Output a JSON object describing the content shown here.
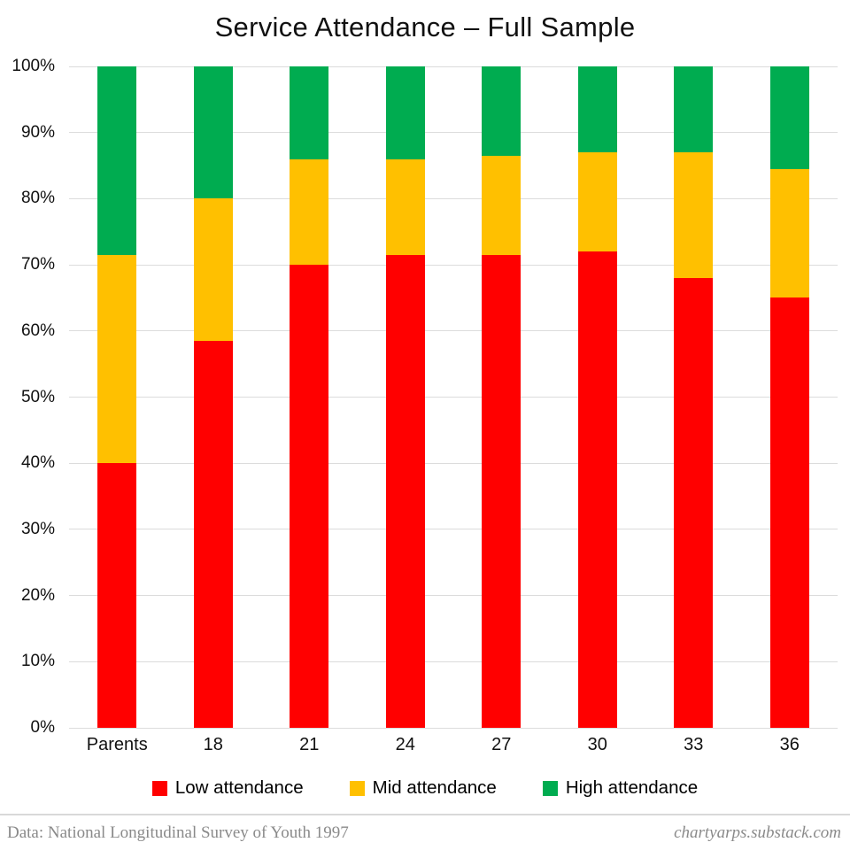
{
  "title": "Service Attendance – Full Sample",
  "chart_data": {
    "type": "bar",
    "stacked": true,
    "orientation": "vertical",
    "title": "Service Attendance – Full Sample",
    "categories": [
      "Parents",
      "18",
      "21",
      "24",
      "27",
      "30",
      "33",
      "36"
    ],
    "series": [
      {
        "name": "Low attendance",
        "color": "#ff0000",
        "values": [
          40.0,
          58.5,
          70.0,
          71.5,
          71.5,
          72.0,
          68.0,
          65.0
        ]
      },
      {
        "name": "Mid attendance",
        "color": "#ffc000",
        "values": [
          31.5,
          21.5,
          16.0,
          14.5,
          15.0,
          15.0,
          19.0,
          19.5
        ]
      },
      {
        "name": "High attendance",
        "color": "#00ac50",
        "values": [
          28.5,
          20.0,
          14.0,
          14.0,
          13.5,
          13.0,
          13.0,
          15.5
        ]
      }
    ],
    "xlabel": "",
    "ylabel": "",
    "ylim": [
      0,
      100
    ],
    "yticks": [
      "0%",
      "10%",
      "20%",
      "30%",
      "40%",
      "50%",
      "60%",
      "70%",
      "80%",
      "90%",
      "100%"
    ],
    "grid": true,
    "gridline_color": "#dcdcdc",
    "legend_position": "bottom"
  },
  "footer": {
    "source": "Data: National Longitudinal Survey of Youth 1997",
    "site": "chartyarps.substack.com"
  }
}
